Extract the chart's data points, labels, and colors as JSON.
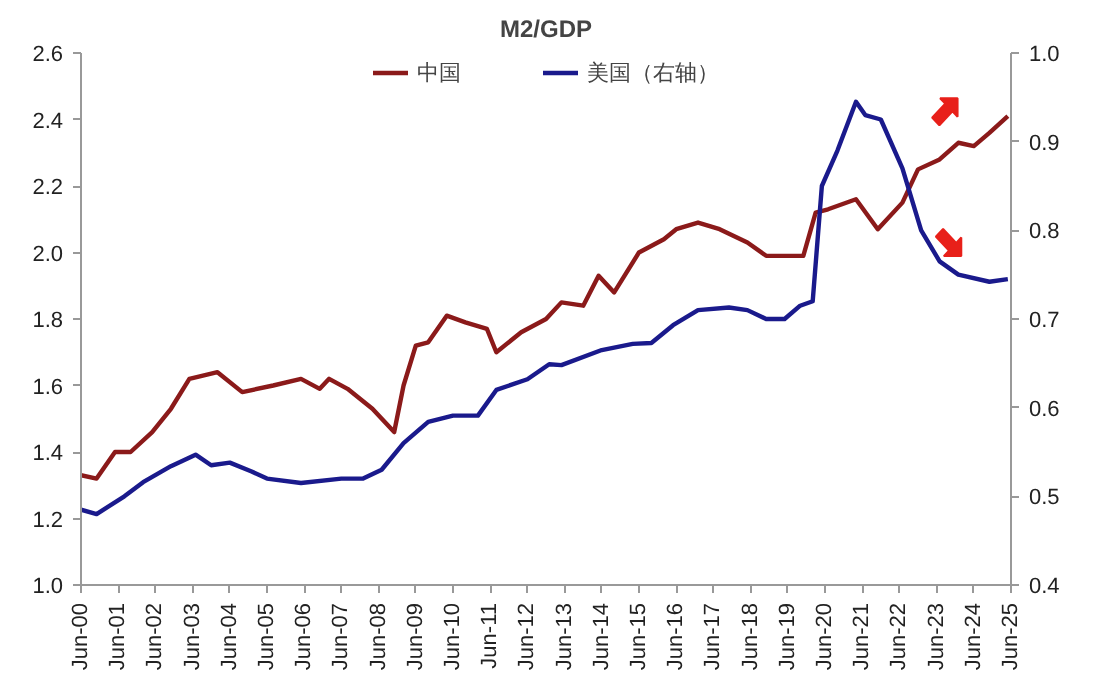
{
  "chart_data": {
    "type": "line",
    "title": "M2/GDP",
    "xlim": [
      "2000-06",
      "2025-06"
    ],
    "xticks": [
      {
        "value": "2000-06",
        "label": "Jun-00"
      },
      {
        "value": "2001-06",
        "label": "Jun-01"
      },
      {
        "value": "2002-06",
        "label": "Jun-02"
      },
      {
        "value": "2003-06",
        "label": "Jun-03"
      },
      {
        "value": "2004-06",
        "label": "Jun-04"
      },
      {
        "value": "2005-06",
        "label": "Jun-05"
      },
      {
        "value": "2006-06",
        "label": "Jun-06"
      },
      {
        "value": "2007-06",
        "label": "Jun-07"
      },
      {
        "value": "2008-06",
        "label": "Jun-08"
      },
      {
        "value": "2009-06",
        "label": "Jun-09"
      },
      {
        "value": "2010-06",
        "label": "Jun-10"
      },
      {
        "value": "2011-06",
        "label": "Jun-11"
      },
      {
        "value": "2012-06",
        "label": "Jun-12"
      },
      {
        "value": "2013-06",
        "label": "Jun-13"
      },
      {
        "value": "2014-06",
        "label": "Jun-14"
      },
      {
        "value": "2015-06",
        "label": "Jun-15"
      },
      {
        "value": "2016-06",
        "label": "Jun-16"
      },
      {
        "value": "2017-06",
        "label": "Jun-17"
      },
      {
        "value": "2018-06",
        "label": "Jun-18"
      },
      {
        "value": "2019-06",
        "label": "Jun-19"
      },
      {
        "value": "2020-06",
        "label": "Jun-20"
      },
      {
        "value": "2021-06",
        "label": "Jun-21"
      },
      {
        "value": "2022-06",
        "label": "Jun-22"
      },
      {
        "value": "2023-06",
        "label": "Jun-23"
      },
      {
        "value": "2024-06",
        "label": "Jun-24"
      },
      {
        "value": "2025-06",
        "label": "Jun-25"
      }
    ],
    "ylim": [
      1.0,
      2.6
    ],
    "yticks": [
      {
        "value": 1.0,
        "label": "1.0"
      },
      1.2,
      1.4,
      1.6,
      1.8,
      {
        "value": 2.0,
        "label": "2.0"
      },
      2.2,
      2.4,
      2.6
    ],
    "y2lim": [
      0.4,
      1.0
    ],
    "y2ticks": [
      0.4,
      0.5,
      0.6,
      0.7,
      0.8,
      0.9,
      {
        "value": 1.0,
        "label": "1.0"
      }
    ],
    "grid": false,
    "legend": "top",
    "line_style": "solid",
    "marker": "none",
    "series": [
      {
        "name": "中国",
        "color": "#8b1a1a",
        "x": [
          "2000-06",
          "2000-11",
          "2001-05",
          "2001-10",
          "2002-05",
          "2002-11",
          "2003-05",
          "2004-02",
          "2004-10",
          "2005-08",
          "2006-05",
          "2006-11",
          "2007-02",
          "2007-08",
          "2008-04",
          "2008-11",
          "2009-02",
          "2009-06",
          "2009-10",
          "2010-04",
          "2010-10",
          "2011-05",
          "2011-08",
          "2012-04",
          "2012-12",
          "2013-05",
          "2013-12",
          "2014-05",
          "2014-10",
          "2015-06",
          "2016-02",
          "2016-06",
          "2017-01",
          "2017-08",
          "2018-05",
          "2018-11",
          "2019-11",
          "2020-03",
          "2020-07",
          "2021-04",
          "2021-11",
          "2022-07",
          "2022-12",
          "2023-07",
          "2024-01",
          "2024-06",
          "2024-11",
          "2025-05"
        ],
        "values": [
          1.33,
          1.32,
          1.4,
          1.4,
          1.46,
          1.53,
          1.62,
          1.64,
          1.58,
          1.6,
          1.62,
          1.59,
          1.62,
          1.59,
          1.53,
          1.46,
          1.6,
          1.72,
          1.73,
          1.81,
          1.79,
          1.77,
          1.7,
          1.76,
          1.8,
          1.85,
          1.84,
          1.93,
          1.88,
          2.0,
          2.04,
          2.07,
          2.09,
          2.07,
          2.03,
          1.99,
          1.99,
          2.12,
          2.13,
          2.16,
          2.07,
          2.15,
          2.25,
          2.28,
          2.33,
          2.32,
          2.36,
          2.41
        ]
      },
      {
        "name": "美国（右轴）",
        "color": "#1a1a8c",
        "axis": "y2",
        "x": [
          "2000-06",
          "2000-11",
          "2001-08",
          "2002-02",
          "2002-11",
          "2003-07",
          "2003-12",
          "2004-06",
          "2005-01",
          "2005-06",
          "2006-05",
          "2007-06",
          "2008-01",
          "2008-07",
          "2009-02",
          "2009-10",
          "2010-06",
          "2011-02",
          "2011-08",
          "2012-06",
          "2013-01",
          "2013-05",
          "2014-06",
          "2015-04",
          "2015-10",
          "2016-05",
          "2017-01",
          "2017-11",
          "2018-05",
          "2018-11",
          "2019-05",
          "2019-10",
          "2020-02",
          "2020-05",
          "2020-10",
          "2021-04",
          "2021-07",
          "2021-12",
          "2022-07",
          "2023-01",
          "2023-07",
          "2024-01",
          "2024-11",
          "2025-05"
        ],
        "values": [
          0.485,
          0.48,
          0.5,
          0.516,
          0.534,
          0.547,
          0.535,
          0.538,
          0.528,
          0.52,
          0.515,
          0.52,
          0.52,
          0.53,
          0.56,
          0.584,
          0.591,
          0.591,
          0.62,
          0.632,
          0.649,
          0.648,
          0.665,
          0.672,
          0.673,
          0.693,
          0.71,
          0.713,
          0.71,
          0.7,
          0.7,
          0.715,
          0.72,
          0.85,
          0.89,
          0.945,
          0.93,
          0.925,
          0.87,
          0.8,
          0.765,
          0.75,
          0.742,
          0.745
        ]
      }
    ]
  }
}
